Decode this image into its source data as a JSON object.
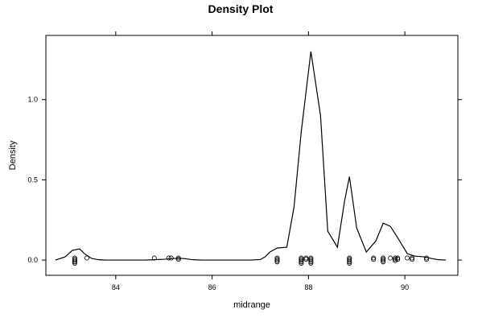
{
  "chart_data": {
    "type": "line",
    "title": "Density Plot",
    "xlabel": "midrange",
    "ylabel": "Density",
    "xlim": [
      82.55,
      91.1
    ],
    "ylim": [
      -0.095,
      1.4
    ],
    "x_ticks": [
      84,
      86,
      88,
      90
    ],
    "x_tick_labels": [
      "84",
      "86",
      "88",
      "90"
    ],
    "y_ticks": [
      0.0,
      0.5,
      1.0
    ],
    "y_tick_labels": [
      "0.0",
      "0.5",
      "1.0"
    ],
    "grid": false,
    "legend": "none",
    "series": [
      {
        "x": [
          82.75,
          82.95,
          83.1,
          83.25,
          83.35,
          83.5,
          83.65,
          83.8,
          84.0,
          84.3,
          84.6,
          84.8,
          85.0,
          85.2,
          85.4,
          85.6,
          85.8,
          86.0,
          86.2,
          86.5,
          86.8,
          87.0,
          87.1,
          87.2,
          87.35,
          87.55,
          87.7,
          87.85,
          88.05,
          88.25,
          88.4,
          88.6,
          88.75,
          88.85,
          89.0,
          89.2,
          89.4,
          89.55,
          89.7,
          89.85,
          90.05,
          90.2,
          90.4,
          90.55,
          90.7,
          90.85
        ],
        "y": [
          0.0,
          0.02,
          0.06,
          0.07,
          0.04,
          0.01,
          0.002,
          0.0,
          0.0,
          0.0,
          0.0,
          0.002,
          0.005,
          0.01,
          0.01,
          0.002,
          0.0,
          0.0,
          0.0,
          0.0,
          0.0,
          0.003,
          0.02,
          0.05,
          0.075,
          0.08,
          0.33,
          0.8,
          1.3,
          0.9,
          0.18,
          0.08,
          0.37,
          0.52,
          0.2,
          0.05,
          0.12,
          0.23,
          0.21,
          0.14,
          0.04,
          0.025,
          0.02,
          0.01,
          0.002,
          0.0
        ]
      }
    ],
    "rug_points": [
      83.15,
      83.15,
      83.15,
      83.15,
      83.15,
      83.4,
      84.8,
      85.1,
      85.15,
      85.3,
      85.3,
      87.35,
      87.35,
      87.35,
      87.35,
      87.85,
      87.85,
      87.85,
      87.85,
      87.85,
      87.95,
      87.95,
      88.05,
      88.05,
      88.05,
      88.05,
      88.05,
      88.85,
      88.85,
      88.85,
      88.85,
      88.85,
      89.35,
      89.35,
      89.55,
      89.55,
      89.55,
      89.55,
      89.7,
      89.8,
      89.8,
      89.8,
      89.85,
      89.85,
      90.05,
      90.15,
      90.15,
      90.45,
      90.45
    ]
  }
}
